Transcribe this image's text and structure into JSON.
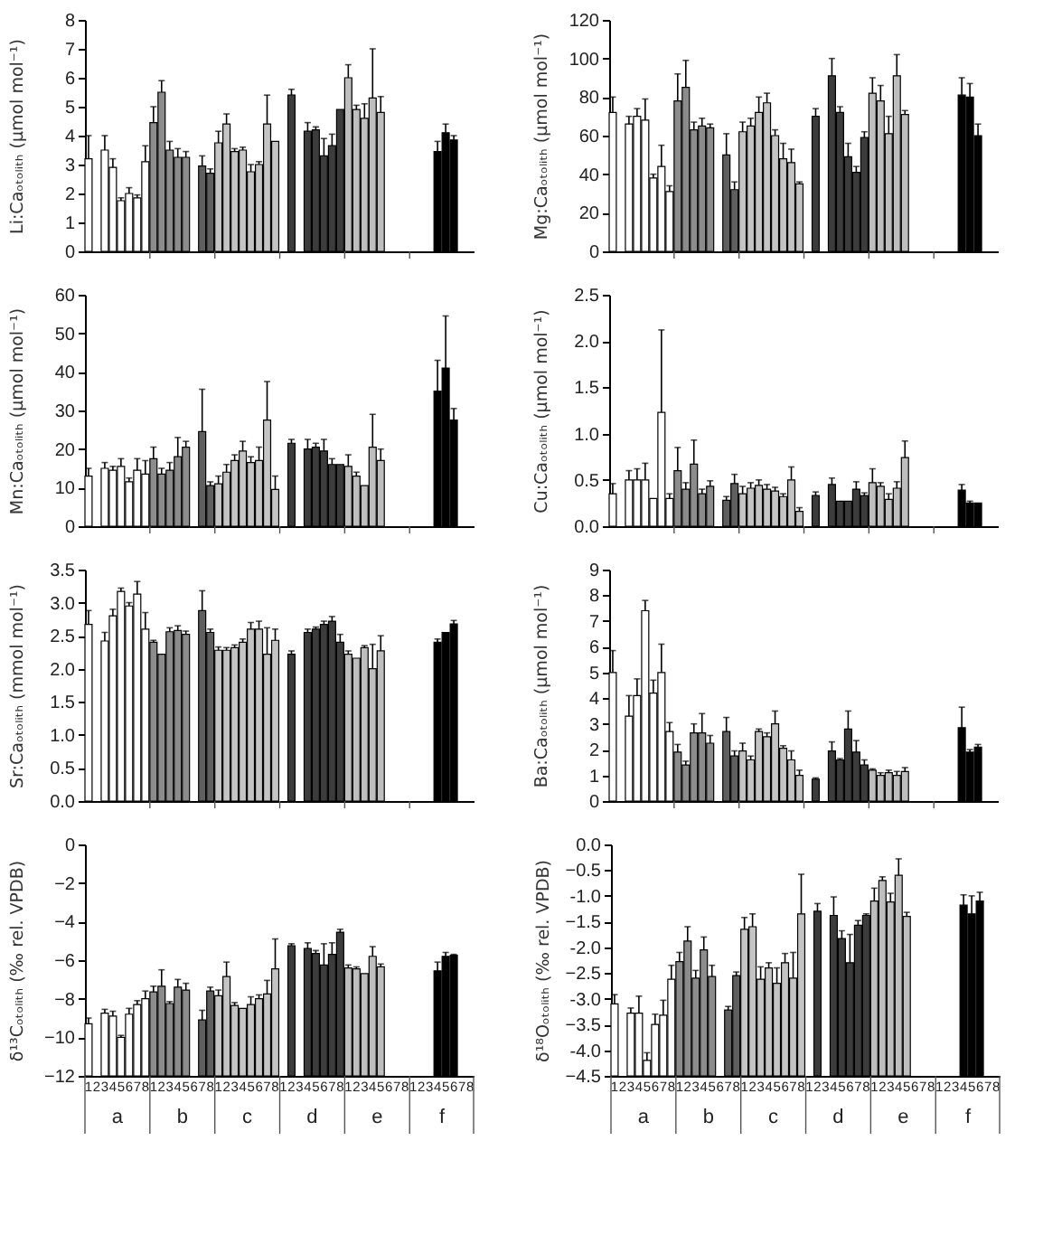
{
  "chart_data": [
    {
      "type": "bar",
      "ylabel": "Li:Caₒₜₒₗᵢₜₕ (µmol mol⁻¹)",
      "tick_labels": "y",
      "ylim": [
        0,
        8
      ],
      "yticks": [
        0,
        1,
        2,
        3,
        4,
        5,
        6,
        7,
        8
      ],
      "categories": [
        "1",
        "2",
        "3",
        "4",
        "5",
        "6",
        "7",
        "8",
        "1",
        "2",
        "3",
        "4",
        "5",
        "6",
        "7",
        "8",
        "1",
        "2",
        "3",
        "4",
        "5",
        "6",
        "7",
        "8",
        "1",
        "2",
        "3",
        "4",
        "5",
        "6",
        "7",
        "8",
        "1",
        "2",
        "3",
        "4",
        "5",
        "6",
        "7",
        "8",
        "1",
        "2",
        "3",
        "4",
        "5",
        "6",
        "7",
        "8"
      ],
      "colors": [
        "#ffffff",
        "#ffffff",
        "#ffffff",
        "#ffffff",
        "#ffffff",
        "#ffffff",
        "#ffffff",
        "#ffffff",
        "#8c8c8c",
        "#8c8c8c",
        "#8c8c8c",
        "#8c8c8c",
        "#8c8c8c",
        "#8c8c8c",
        "#5f5f5f",
        "#5f5f5f",
        "#c4c4c4",
        "#c4c4c4",
        "#c4c4c4",
        "#c4c4c4",
        "#c4c4c4",
        "#c4c4c4",
        "#c4c4c4",
        "#c4c4c4",
        "#3c3c3c",
        "#3c3c3c",
        "#3c3c3c",
        "#3c3c3c",
        "#3c3c3c",
        "#3c3c3c",
        "#3c3c3c",
        "#3c3c3c",
        "#bebebe",
        "#bebebe",
        "#bebebe",
        "#bebebe",
        "#bebebe",
        "#bebebe",
        "#bebebe",
        "#bebebe",
        "#000000",
        "#000000",
        "#000000",
        "#000000",
        "#000000",
        "#000000",
        "#000000",
        "#000000"
      ],
      "values": [
        3.2,
        null,
        3.5,
        2.9,
        1.75,
        2.0,
        1.85,
        3.1,
        4.45,
        5.5,
        3.5,
        3.25,
        3.25,
        null,
        2.95,
        2.7,
        3.75,
        4.4,
        3.45,
        3.5,
        2.75,
        3.0,
        4.4,
        3.8,
        null,
        5.4,
        null,
        4.15,
        4.2,
        3.3,
        3.65,
        4.9,
        6.0,
        4.9,
        4.6,
        5.3,
        4.8,
        null,
        null,
        null,
        null,
        null,
        null,
        3.45,
        4.1,
        3.85,
        null,
        null
      ],
      "errors": [
        [
          3.2,
          4.0
        ],
        null,
        [
          3.5,
          4.0
        ],
        [
          2.9,
          3.2
        ],
        [
          1.75,
          1.85
        ],
        [
          2.0,
          2.2
        ],
        [
          1.85,
          1.95
        ],
        [
          3.1,
          3.65
        ],
        [
          4.45,
          5.0
        ],
        [
          5.5,
          5.9
        ],
        [
          3.5,
          3.8
        ],
        [
          3.25,
          3.55
        ],
        [
          3.25,
          3.45
        ],
        null,
        [
          2.95,
          3.3
        ],
        [
          2.7,
          2.85
        ],
        [
          3.75,
          4.15
        ],
        [
          4.4,
          4.75
        ],
        [
          3.45,
          3.55
        ],
        [
          3.5,
          3.6
        ],
        [
          2.75,
          3.0
        ],
        [
          3.0,
          3.1
        ],
        [
          4.4,
          5.4
        ],
        null,
        null,
        [
          5.4,
          5.6
        ],
        null,
        [
          4.15,
          4.45
        ],
        [
          4.2,
          4.3
        ],
        [
          3.3,
          3.9
        ],
        [
          3.65,
          4.05
        ],
        null,
        [
          6.0,
          6.45
        ],
        [
          4.9,
          5.05
        ],
        [
          4.6,
          5.1
        ],
        [
          5.3,
          7.0
        ],
        [
          4.8,
          5.35
        ],
        null,
        null,
        null,
        null,
        null,
        null,
        [
          3.45,
          3.8
        ],
        [
          4.1,
          4.4
        ],
        [
          3.85,
          4.0
        ],
        null,
        null
      ]
    },
    {
      "type": "bar",
      "ylabel": "Mg:Caₒₜₒₗᵢₜₕ (µmol mol⁻¹)",
      "tick_labels": "y",
      "ylim": [
        0,
        120
      ],
      "yticks": [
        0,
        20,
        40,
        60,
        80,
        100,
        120
      ],
      "categories": [
        "1",
        "2",
        "3",
        "4",
        "5",
        "6",
        "7",
        "8",
        "1",
        "2",
        "3",
        "4",
        "5",
        "6",
        "7",
        "8",
        "1",
        "2",
        "3",
        "4",
        "5",
        "6",
        "7",
        "8",
        "1",
        "2",
        "3",
        "4",
        "5",
        "6",
        "7",
        "8",
        "1",
        "2",
        "3",
        "4",
        "5",
        "6",
        "7",
        "8",
        "1",
        "2",
        "3",
        "4",
        "5",
        "6",
        "7",
        "8"
      ],
      "colors": [
        "#ffffff",
        "#ffffff",
        "#ffffff",
        "#ffffff",
        "#ffffff",
        "#ffffff",
        "#ffffff",
        "#ffffff",
        "#8c8c8c",
        "#8c8c8c",
        "#8c8c8c",
        "#8c8c8c",
        "#8c8c8c",
        "#8c8c8c",
        "#5f5f5f",
        "#5f5f5f",
        "#c4c4c4",
        "#c4c4c4",
        "#c4c4c4",
        "#c4c4c4",
        "#c4c4c4",
        "#c4c4c4",
        "#c4c4c4",
        "#c4c4c4",
        "#3c3c3c",
        "#3c3c3c",
        "#3c3c3c",
        "#3c3c3c",
        "#3c3c3c",
        "#3c3c3c",
        "#3c3c3c",
        "#3c3c3c",
        "#bebebe",
        "#bebebe",
        "#bebebe",
        "#bebebe",
        "#bebebe",
        "#bebebe",
        "#bebebe",
        "#bebebe",
        "#000000",
        "#000000",
        "#000000",
        "#000000",
        "#000000",
        "#000000",
        "#000000",
        "#000000"
      ],
      "values": [
        72,
        null,
        66,
        70,
        68,
        38,
        44,
        31,
        78,
        85,
        63,
        65,
        64,
        null,
        50,
        32,
        62,
        65,
        72,
        77,
        60,
        48,
        46,
        35,
        null,
        70,
        null,
        91,
        72,
        49,
        41,
        59,
        82,
        78,
        61,
        91,
        71,
        null,
        null,
        null,
        null,
        null,
        null,
        81,
        80,
        60,
        null,
        null
      ],
      "errors": [
        [
          72,
          80
        ],
        null,
        [
          66,
          70
        ],
        [
          70,
          74
        ],
        [
          68,
          79
        ],
        [
          38,
          40
        ],
        [
          44,
          55
        ],
        [
          31,
          34
        ],
        [
          78,
          92
        ],
        [
          85,
          99
        ],
        [
          63,
          67
        ],
        [
          65,
          69
        ],
        [
          64,
          66
        ],
        null,
        [
          50,
          61
        ],
        [
          32,
          36
        ],
        [
          62,
          67
        ],
        [
          65,
          69
        ],
        [
          72,
          80
        ],
        [
          77,
          82
        ],
        [
          60,
          63
        ],
        [
          48,
          56
        ],
        [
          46,
          53
        ],
        [
          35,
          36
        ],
        null,
        [
          70,
          74
        ],
        null,
        [
          91,
          100
        ],
        [
          72,
          75
        ],
        [
          49,
          56
        ],
        [
          41,
          44
        ],
        [
          59,
          62
        ],
        [
          82,
          90
        ],
        [
          78,
          86
        ],
        [
          61,
          70
        ],
        [
          91,
          102
        ],
        [
          71,
          73
        ],
        null,
        null,
        null,
        null,
        null,
        null,
        [
          81,
          90
        ],
        [
          80,
          87
        ],
        [
          60,
          66
        ],
        null,
        null
      ]
    },
    {
      "type": "bar",
      "ylabel": "Mn:Caₒₜₒₗᵢₜₕ (µmol mol⁻¹)",
      "tick_labels": "y",
      "ylim": [
        0,
        60
      ],
      "yticks": [
        0,
        10,
        20,
        30,
        40,
        50,
        60
      ],
      "categories": [
        "1",
        "2",
        "3",
        "4",
        "5",
        "6",
        "7",
        "8",
        "1",
        "2",
        "3",
        "4",
        "5",
        "6",
        "7",
        "8",
        "1",
        "2",
        "3",
        "4",
        "5",
        "6",
        "7",
        "8",
        "1",
        "2",
        "3",
        "4",
        "5",
        "6",
        "7",
        "8",
        "1",
        "2",
        "3",
        "4",
        "5",
        "6",
        "7",
        "8",
        "1",
        "2",
        "3",
        "4",
        "5",
        "6",
        "7",
        "8"
      ],
      "colors": [
        "#ffffff",
        "#ffffff",
        "#ffffff",
        "#ffffff",
        "#ffffff",
        "#ffffff",
        "#ffffff",
        "#ffffff",
        "#8c8c8c",
        "#8c8c8c",
        "#8c8c8c",
        "#8c8c8c",
        "#8c8c8c",
        "#8c8c8c",
        "#5f5f5f",
        "#5f5f5f",
        "#c4c4c4",
        "#c4c4c4",
        "#c4c4c4",
        "#c4c4c4",
        "#c4c4c4",
        "#c4c4c4",
        "#c4c4c4",
        "#c4c4c4",
        "#3c3c3c",
        "#3c3c3c",
        "#3c3c3c",
        "#3c3c3c",
        "#3c3c3c",
        "#3c3c3c",
        "#3c3c3c",
        "#3c3c3c",
        "#bebebe",
        "#bebebe",
        "#bebebe",
        "#bebebe",
        "#bebebe",
        "#bebebe",
        "#bebebe",
        "#bebebe",
        "#000000",
        "#000000",
        "#000000",
        "#000000",
        "#000000",
        "#000000",
        "#000000",
        "#000000"
      ],
      "values": [
        13,
        null,
        15,
        14.5,
        15.5,
        11.5,
        14.5,
        13.5,
        17.5,
        13.5,
        14.5,
        18,
        20.5,
        null,
        24.5,
        10.5,
        11,
        14,
        17,
        19.5,
        16.5,
        17,
        27.5,
        9.5,
        null,
        21.5,
        null,
        20,
        20.5,
        19.5,
        16,
        16,
        15.5,
        13,
        10.5,
        20.5,
        17,
        null,
        null,
        null,
        null,
        null,
        null,
        35,
        41,
        27.5,
        null,
        null
      ],
      "errors": [
        [
          13,
          15
        ],
        null,
        [
          15,
          16.5
        ],
        [
          14.5,
          15.5
        ],
        [
          15.5,
          17.5
        ],
        [
          11.5,
          12.5
        ],
        [
          14.5,
          17.5
        ],
        [
          13.5,
          17
        ],
        [
          17.5,
          20.5
        ],
        [
          13.5,
          15
        ],
        [
          14.5,
          16.5
        ],
        [
          18,
          23
        ],
        [
          20.5,
          22
        ],
        null,
        [
          24.5,
          35.5
        ],
        [
          10.5,
          11.5
        ],
        [
          11,
          13
        ],
        [
          14,
          16
        ],
        [
          17,
          18.5
        ],
        [
          19.5,
          22
        ],
        [
          16.5,
          18
        ],
        [
          17,
          20.5
        ],
        [
          27.5,
          37.5
        ],
        [
          9.5,
          13
        ],
        null,
        [
          21.5,
          22.5
        ],
        null,
        [
          20,
          22.5
        ],
        [
          20.5,
          21.5
        ],
        [
          19.5,
          22.5
        ],
        [
          16,
          17.5
        ],
        null,
        [
          15.5,
          18.5
        ],
        [
          13,
          14
        ],
        null,
        [
          20.5,
          29
        ],
        [
          17,
          20
        ],
        null,
        null,
        null,
        null,
        null,
        null,
        [
          35,
          43
        ],
        [
          41,
          54.5
        ],
        [
          27.5,
          30.5
        ],
        null,
        null
      ]
    },
    {
      "type": "bar",
      "ylabel": "Cu:Caₒₜₒₗᵢₜₕ (µmol mol⁻¹)",
      "tick_labels": "y",
      "ylim": [
        0,
        2.5
      ],
      "yticks": [
        {
          "value": 0,
          "label": "0.0"
        },
        0.5,
        {
          "value": 1,
          "label": "1.0"
        },
        1.5,
        {
          "value": 2,
          "label": "2.0"
        },
        2.5
      ],
      "categories": [
        "1",
        "2",
        "3",
        "4",
        "5",
        "6",
        "7",
        "8",
        "1",
        "2",
        "3",
        "4",
        "5",
        "6",
        "7",
        "8",
        "1",
        "2",
        "3",
        "4",
        "5",
        "6",
        "7",
        "8",
        "1",
        "2",
        "3",
        "4",
        "5",
        "6",
        "7",
        "8",
        "1",
        "2",
        "3",
        "4",
        "5",
        "6",
        "7",
        "8",
        "1",
        "2",
        "3",
        "4",
        "5",
        "6",
        "7",
        "8"
      ],
      "colors": [
        "#ffffff",
        "#ffffff",
        "#ffffff",
        "#ffffff",
        "#ffffff",
        "#ffffff",
        "#ffffff",
        "#ffffff",
        "#8c8c8c",
        "#8c8c8c",
        "#8c8c8c",
        "#8c8c8c",
        "#8c8c8c",
        "#8c8c8c",
        "#5f5f5f",
        "#5f5f5f",
        "#c4c4c4",
        "#c4c4c4",
        "#c4c4c4",
        "#c4c4c4",
        "#c4c4c4",
        "#c4c4c4",
        "#c4c4c4",
        "#c4c4c4",
        "#3c3c3c",
        "#3c3c3c",
        "#3c3c3c",
        "#3c3c3c",
        "#3c3c3c",
        "#3c3c3c",
        "#3c3c3c",
        "#3c3c3c",
        "#bebebe",
        "#bebebe",
        "#bebebe",
        "#bebebe",
        "#bebebe",
        "#bebebe",
        "#bebebe",
        "#bebebe",
        "#000000",
        "#000000",
        "#000000",
        "#000000",
        "#000000",
        "#000000",
        "#000000",
        "#000000"
      ],
      "values": [
        0.35,
        null,
        0.5,
        0.5,
        0.5,
        0.3,
        1.23,
        0.3,
        0.6,
        0.4,
        0.67,
        0.35,
        0.43,
        null,
        0.28,
        0.46,
        0.35,
        0.41,
        0.44,
        0.4,
        0.38,
        0.32,
        0.5,
        0.16,
        null,
        0.33,
        null,
        0.45,
        0.27,
        0.27,
        0.4,
        0.33,
        0.47,
        0.43,
        0.29,
        0.41,
        0.74,
        null,
        null,
        null,
        null,
        null,
        null,
        0.39,
        0.25,
        0.25,
        null,
        null
      ],
      "errors": [
        [
          0.35,
          0.46
        ],
        null,
        [
          0.5,
          0.6
        ],
        [
          0.5,
          0.62
        ],
        [
          0.5,
          0.68
        ],
        null,
        [
          1.23,
          2.12
        ],
        [
          0.3,
          0.35
        ],
        [
          0.6,
          0.85
        ],
        [
          0.4,
          0.47
        ],
        [
          0.67,
          0.93
        ],
        [
          0.35,
          0.4
        ],
        [
          0.43,
          0.49
        ],
        null,
        [
          0.28,
          0.32
        ],
        [
          0.46,
          0.56
        ],
        [
          0.35,
          0.43
        ],
        [
          0.41,
          0.47
        ],
        [
          0.44,
          0.5
        ],
        [
          0.4,
          0.45
        ],
        [
          0.38,
          0.42
        ],
        [
          0.32,
          0.35
        ],
        [
          0.5,
          0.64
        ],
        [
          0.16,
          0.2
        ],
        null,
        [
          0.33,
          0.37
        ],
        null,
        [
          0.45,
          0.52
        ],
        null,
        null,
        [
          0.4,
          0.48
        ],
        [
          0.33,
          0.36
        ],
        [
          0.47,
          0.62
        ],
        [
          0.43,
          0.47
        ],
        [
          0.29,
          0.35
        ],
        [
          0.41,
          0.48
        ],
        [
          0.74,
          0.92
        ],
        null,
        null,
        null,
        null,
        null,
        null,
        [
          0.39,
          0.45
        ],
        [
          0.25,
          0.27
        ],
        null,
        null,
        null
      ]
    },
    {
      "type": "bar",
      "ylabel": "Sr:Caₒₜₒₗᵢₜₕ (mmol mol⁻¹)",
      "tick_labels": "y",
      "ylim": [
        0,
        3.5
      ],
      "yticks": [
        {
          "value": 0,
          "label": "0.0"
        },
        0.5,
        {
          "value": 1,
          "label": "1.0"
        },
        1.5,
        {
          "value": 2,
          "label": "2.0"
        },
        2.5,
        {
          "value": 3,
          "label": "3.0"
        },
        3.5
      ],
      "categories": [
        "1",
        "2",
        "3",
        "4",
        "5",
        "6",
        "7",
        "8",
        "1",
        "2",
        "3",
        "4",
        "5",
        "6",
        "7",
        "8",
        "1",
        "2",
        "3",
        "4",
        "5",
        "6",
        "7",
        "8",
        "1",
        "2",
        "3",
        "4",
        "5",
        "6",
        "7",
        "8",
        "1",
        "2",
        "3",
        "4",
        "5",
        "6",
        "7",
        "8",
        "1",
        "2",
        "3",
        "4",
        "5",
        "6",
        "7",
        "8"
      ],
      "colors": [
        "#ffffff",
        "#ffffff",
        "#ffffff",
        "#ffffff",
        "#ffffff",
        "#ffffff",
        "#ffffff",
        "#ffffff",
        "#8c8c8c",
        "#8c8c8c",
        "#8c8c8c",
        "#8c8c8c",
        "#8c8c8c",
        "#8c8c8c",
        "#5f5f5f",
        "#5f5f5f",
        "#c4c4c4",
        "#c4c4c4",
        "#c4c4c4",
        "#c4c4c4",
        "#c4c4c4",
        "#c4c4c4",
        "#c4c4c4",
        "#c4c4c4",
        "#3c3c3c",
        "#3c3c3c",
        "#3c3c3c",
        "#3c3c3c",
        "#3c3c3c",
        "#3c3c3c",
        "#3c3c3c",
        "#3c3c3c",
        "#bebebe",
        "#bebebe",
        "#bebebe",
        "#bebebe",
        "#bebebe",
        "#bebebe",
        "#bebebe",
        "#bebebe",
        "#000000",
        "#000000",
        "#000000",
        "#000000",
        "#000000",
        "#000000",
        "#000000",
        "#000000"
      ],
      "values": [
        2.67,
        null,
        2.42,
        2.8,
        3.17,
        2.95,
        3.13,
        2.6,
        2.4,
        2.22,
        2.56,
        2.58,
        2.52,
        null,
        2.88,
        2.55,
        2.28,
        2.28,
        2.32,
        2.4,
        2.6,
        2.6,
        2.22,
        2.43,
        null,
        2.22,
        null,
        2.55,
        2.6,
        2.67,
        2.72,
        2.4,
        2.22,
        2.16,
        2.32,
        2.0,
        2.27,
        null,
        null,
        null,
        null,
        null,
        null,
        2.4,
        2.55,
        2.68,
        null,
        null
      ],
      "errors": [
        [
          2.67,
          2.88
        ],
        null,
        [
          2.42,
          2.55
        ],
        [
          2.8,
          2.9
        ],
        [
          3.17,
          3.22
        ],
        [
          2.95,
          3.0
        ],
        [
          3.13,
          3.32
        ],
        [
          2.6,
          2.85
        ],
        [
          2.4,
          2.43
        ],
        null,
        [
          2.56,
          2.62
        ],
        [
          2.58,
          2.65
        ],
        [
          2.52,
          2.57
        ],
        null,
        [
          2.88,
          3.18
        ],
        [
          2.55,
          2.6
        ],
        [
          2.28,
          2.33
        ],
        [
          2.28,
          2.32
        ],
        [
          2.32,
          2.36
        ],
        [
          2.4,
          2.45
        ],
        [
          2.6,
          2.7
        ],
        [
          2.6,
          2.72
        ],
        [
          2.22,
          2.62
        ],
        [
          2.43,
          2.6
        ],
        null,
        [
          2.22,
          2.27
        ],
        null,
        [
          2.55,
          2.6
        ],
        [
          2.6,
          2.63
        ],
        [
          2.67,
          2.72
        ],
        [
          2.72,
          2.79
        ],
        [
          2.4,
          2.52
        ],
        [
          2.22,
          2.27
        ],
        null,
        [
          2.32,
          2.35
        ],
        [
          2.0,
          2.37
        ],
        [
          2.27,
          2.5
        ],
        null,
        null,
        null,
        null,
        null,
        null,
        [
          2.4,
          2.45
        ],
        null,
        [
          2.68,
          2.73
        ],
        null,
        null
      ]
    },
    {
      "type": "bar",
      "ylabel": "Ba:Caₒₜₒₗᵢₜₕ (µmol mol⁻¹)",
      "tick_labels": "y",
      "ylim": [
        0,
        9
      ],
      "yticks": [
        0,
        1,
        2,
        3,
        4,
        5,
        6,
        7,
        8,
        9
      ],
      "categories": [
        "1",
        "2",
        "3",
        "4",
        "5",
        "6",
        "7",
        "8",
        "1",
        "2",
        "3",
        "4",
        "5",
        "6",
        "7",
        "8",
        "1",
        "2",
        "3",
        "4",
        "5",
        "6",
        "7",
        "8",
        "1",
        "2",
        "3",
        "4",
        "5",
        "6",
        "7",
        "8",
        "1",
        "2",
        "3",
        "4",
        "5",
        "6",
        "7",
        "8",
        "1",
        "2",
        "3",
        "4",
        "5",
        "6",
        "7",
        "8"
      ],
      "colors": [
        "#ffffff",
        "#ffffff",
        "#ffffff",
        "#ffffff",
        "#ffffff",
        "#ffffff",
        "#ffffff",
        "#ffffff",
        "#8c8c8c",
        "#8c8c8c",
        "#8c8c8c",
        "#8c8c8c",
        "#8c8c8c",
        "#8c8c8c",
        "#5f5f5f",
        "#5f5f5f",
        "#c4c4c4",
        "#c4c4c4",
        "#c4c4c4",
        "#c4c4c4",
        "#c4c4c4",
        "#c4c4c4",
        "#c4c4c4",
        "#c4c4c4",
        "#3c3c3c",
        "#3c3c3c",
        "#3c3c3c",
        "#3c3c3c",
        "#3c3c3c",
        "#3c3c3c",
        "#3c3c3c",
        "#3c3c3c",
        "#bebebe",
        "#bebebe",
        "#bebebe",
        "#bebebe",
        "#bebebe",
        "#bebebe",
        "#bebebe",
        "#bebebe",
        "#000000",
        "#000000",
        "#000000",
        "#000000",
        "#000000",
        "#000000",
        "#000000",
        "#000000"
      ],
      "values": [
        5.0,
        null,
        3.3,
        4.1,
        7.4,
        4.2,
        5.0,
        2.7,
        1.9,
        1.4,
        2.65,
        2.65,
        2.25,
        null,
        2.7,
        1.75,
        1.95,
        1.6,
        2.7,
        2.5,
        3.0,
        2.05,
        1.6,
        1.0,
        null,
        0.85,
        null,
        1.95,
        1.6,
        2.8,
        1.9,
        1.4,
        1.2,
        1.0,
        1.1,
        1.0,
        1.15,
        null,
        null,
        null,
        null,
        null,
        null,
        2.85,
        1.9,
        2.1,
        null,
        null
      ],
      "errors": [
        [
          5.0,
          5.85
        ],
        null,
        [
          3.3,
          4.1
        ],
        [
          4.1,
          4.75
        ],
        [
          7.4,
          7.8
        ],
        [
          4.2,
          4.7
        ],
        [
          5.0,
          6.1
        ],
        [
          2.7,
          3.05
        ],
        [
          1.9,
          2.2
        ],
        [
          1.4,
          1.55
        ],
        [
          2.65,
          3.0
        ],
        [
          2.65,
          3.4
        ],
        [
          2.25,
          2.55
        ],
        null,
        [
          2.7,
          3.25
        ],
        [
          1.75,
          1.95
        ],
        [
          1.95,
          2.25
        ],
        [
          1.6,
          1.75
        ],
        [
          2.7,
          2.8
        ],
        [
          2.5,
          2.65
        ],
        [
          3.0,
          3.5
        ],
        [
          2.05,
          2.15
        ],
        [
          1.6,
          1.95
        ],
        [
          1.0,
          1.2
        ],
        null,
        [
          0.85,
          0.9
        ],
        null,
        [
          1.95,
          2.3
        ],
        [
          1.6,
          1.65
        ],
        [
          2.8,
          3.5
        ],
        [
          1.9,
          2.35
        ],
        [
          1.4,
          1.6
        ],
        [
          1.2,
          1.25
        ],
        [
          1.0,
          1.1
        ],
        [
          1.1,
          1.2
        ],
        [
          1.0,
          1.15
        ],
        [
          1.15,
          1.3
        ],
        null,
        null,
        null,
        null,
        null,
        null,
        [
          2.85,
          3.65
        ],
        [
          1.9,
          2.0
        ],
        [
          2.1,
          2.2
        ],
        null,
        null
      ]
    },
    {
      "type": "bar",
      "ylabel": "δ¹³Cₒₜₒₗᵢₜₕ (‰ rel. VPDB)",
      "ylim": [
        -12,
        0
      ],
      "yticks": [
        -12,
        -10,
        -8,
        -6,
        -4,
        -2,
        0
      ],
      "annotations": [
        "a",
        "b",
        "c",
        "d",
        "e",
        "f"
      ],
      "categories": [
        "1",
        "2",
        "3",
        "4",
        "5",
        "6",
        "7",
        "8",
        "1",
        "2",
        "3",
        "4",
        "5",
        "6",
        "7",
        "8",
        "1",
        "2",
        "3",
        "4",
        "5",
        "6",
        "7",
        "8",
        "1",
        "2",
        "3",
        "4",
        "5",
        "6",
        "7",
        "8",
        "1",
        "2",
        "3",
        "4",
        "5",
        "6",
        "7",
        "8",
        "1",
        "2",
        "3",
        "4",
        "5",
        "6",
        "7",
        "8"
      ],
      "colors": [
        "#ffffff",
        "#ffffff",
        "#ffffff",
        "#ffffff",
        "#ffffff",
        "#ffffff",
        "#ffffff",
        "#ffffff",
        "#8c8c8c",
        "#8c8c8c",
        "#8c8c8c",
        "#8c8c8c",
        "#8c8c8c",
        "#8c8c8c",
        "#5f5f5f",
        "#5f5f5f",
        "#c4c4c4",
        "#c4c4c4",
        "#c4c4c4",
        "#c4c4c4",
        "#c4c4c4",
        "#c4c4c4",
        "#c4c4c4",
        "#c4c4c4",
        "#3c3c3c",
        "#3c3c3c",
        "#3c3c3c",
        "#3c3c3c",
        "#3c3c3c",
        "#3c3c3c",
        "#3c3c3c",
        "#3c3c3c",
        "#bebebe",
        "#bebebe",
        "#bebebe",
        "#bebebe",
        "#bebebe",
        "#bebebe",
        "#bebebe",
        "#bebebe",
        "#000000",
        "#000000",
        "#000000",
        "#000000",
        "#000000",
        "#000000",
        "#000000",
        "#000000"
      ],
      "base": [
        -12,
        null,
        -12,
        -12,
        -12,
        -12,
        -12,
        -12,
        -12,
        -12,
        -12,
        -12,
        -12,
        null,
        -12,
        -12,
        -12,
        -12,
        -12,
        -12,
        -12,
        -12,
        -12,
        -12,
        null,
        -12,
        null,
        -12,
        -12,
        -12,
        -12,
        -12,
        -12,
        -12,
        -12,
        -12,
        -12,
        null,
        null,
        null,
        null,
        null,
        null,
        -12,
        -12,
        -12,
        null,
        null
      ],
      "values": [
        2.7,
        null,
        3.25,
        3.1,
        2.0,
        3.2,
        3.7,
        4.0,
        4.35,
        4.65,
        3.75,
        4.6,
        4.45,
        null,
        2.9,
        4.4,
        4.15,
        5.15,
        3.65,
        3.5,
        3.7,
        4.0,
        4.25,
        5.55,
        null,
        6.75,
        null,
        6.6,
        6.35,
        5.75,
        6.3,
        7.45,
        5.6,
        5.55,
        5.3,
        6.2,
        5.65,
        null,
        null,
        null,
        null,
        null,
        null,
        5.45,
        6.2,
        6.25,
        null,
        null
      ],
      "errors": [
        [
          -9.3,
          -9.0
        ],
        null,
        [
          -8.75,
          -8.55
        ],
        [
          -8.9,
          -8.65
        ],
        [
          -10.0,
          -9.9
        ],
        [
          -8.8,
          -8.5
        ],
        [
          -8.3,
          -8.1
        ],
        [
          -8.0,
          -7.6
        ],
        [
          -7.65,
          -7.35
        ],
        [
          -7.35,
          -6.5
        ],
        [
          -8.25,
          -8.15
        ],
        [
          -7.4,
          -7.0
        ],
        [
          -7.55,
          -7.2
        ],
        null,
        [
          -9.1,
          -8.6
        ],
        [
          -7.6,
          -7.4
        ],
        [
          -7.85,
          -7.55
        ],
        [
          -6.85,
          -6.1
        ],
        [
          -8.35,
          -8.2
        ],
        null,
        [
          -8.3,
          -7.9
        ],
        [
          -8.0,
          -7.8
        ],
        [
          -7.75,
          -7.05
        ],
        [
          -6.45,
          -4.9
        ],
        null,
        [
          -5.25,
          -5.15
        ],
        null,
        [
          -5.4,
          -5.1
        ],
        [
          -5.65,
          -5.5
        ],
        [
          -6.25,
          -5.15
        ],
        [
          -5.7,
          -5.1
        ],
        [
          -4.55,
          -4.4
        ],
        [
          -6.4,
          -6.25
        ],
        [
          -6.45,
          -6.35
        ],
        null,
        [
          -5.8,
          -5.3
        ],
        [
          -6.35,
          -6.2
        ],
        null,
        null,
        null,
        null,
        null,
        null,
        [
          -6.55,
          -6.1
        ],
        [
          -5.8,
          -5.6
        ],
        [
          -5.75,
          -5.7
        ],
        null,
        null
      ]
    },
    {
      "type": "bar",
      "ylabel": "δ¹⁸Oₒₜₒₗᵢₜₕ (‰ rel. VPDB)",
      "ylim": [
        -4.5,
        0
      ],
      "yticks": [
        -4.5,
        {
          "value": -4,
          "label": "-4.0"
        },
        -3.5,
        {
          "value": -3,
          "label": "-3.0"
        },
        -2.5,
        {
          "value": -2,
          "label": "-2.0"
        },
        -1.5,
        {
          "value": -1,
          "label": "-1.0"
        },
        -0.5,
        {
          "value": 0,
          "label": "0.0"
        }
      ],
      "annotations": [
        "a",
        "b",
        "c",
        "d",
        "e",
        "f"
      ],
      "categories": [
        "1",
        "2",
        "3",
        "4",
        "5",
        "6",
        "7",
        "8",
        "1",
        "2",
        "3",
        "4",
        "5",
        "6",
        "7",
        "8",
        "1",
        "2",
        "3",
        "4",
        "5",
        "6",
        "7",
        "8",
        "1",
        "2",
        "3",
        "4",
        "5",
        "6",
        "7",
        "8",
        "1",
        "2",
        "3",
        "4",
        "5",
        "6",
        "7",
        "8",
        "1",
        "2",
        "3",
        "4",
        "5",
        "6",
        "7",
        "8"
      ],
      "colors": [
        "#ffffff",
        "#ffffff",
        "#ffffff",
        "#ffffff",
        "#ffffff",
        "#ffffff",
        "#ffffff",
        "#ffffff",
        "#8c8c8c",
        "#8c8c8c",
        "#8c8c8c",
        "#8c8c8c",
        "#8c8c8c",
        "#8c8c8c",
        "#5f5f5f",
        "#5f5f5f",
        "#c4c4c4",
        "#c4c4c4",
        "#c4c4c4",
        "#c4c4c4",
        "#c4c4c4",
        "#c4c4c4",
        "#c4c4c4",
        "#c4c4c4",
        "#3c3c3c",
        "#3c3c3c",
        "#3c3c3c",
        "#3c3c3c",
        "#3c3c3c",
        "#3c3c3c",
        "#3c3c3c",
        "#3c3c3c",
        "#bebebe",
        "#bebebe",
        "#bebebe",
        "#bebebe",
        "#bebebe",
        "#bebebe",
        "#bebebe",
        "#bebebe",
        "#000000",
        "#000000",
        "#000000",
        "#000000",
        "#000000",
        "#000000",
        "#000000",
        "#000000"
      ],
      "base": [
        -4.5,
        null,
        -4.5,
        -4.5,
        -4.5,
        -4.5,
        -4.5,
        -4.5,
        -4.5,
        -4.5,
        -4.5,
        -4.5,
        -4.5,
        null,
        -4.5,
        -4.5,
        -4.5,
        -4.5,
        -4.5,
        -4.5,
        -4.5,
        -4.5,
        -4.5,
        -4.5,
        null,
        -4.5,
        null,
        -4.5,
        -4.5,
        -4.5,
        -4.5,
        -4.5,
        -4.5,
        -4.5,
        -4.5,
        -4.5,
        -4.5,
        null,
        null,
        null,
        null,
        null,
        null,
        -4.5,
        -4.5,
        -4.5,
        null,
        null
      ],
      "values": [
        1.4,
        null,
        1.22,
        1.22,
        0.3,
        1.0,
        1.18,
        1.88,
        2.22,
        2.62,
        1.9,
        2.45,
        1.93,
        null,
        1.28,
        1.95,
        2.85,
        2.9,
        1.88,
        2.1,
        1.8,
        2.2,
        1.9,
        3.15,
        null,
        3.2,
        null,
        3.12,
        2.67,
        2.2,
        2.93,
        3.12,
        3.4,
        3.8,
        3.38,
        3.9,
        3.1,
        null,
        null,
        null,
        null,
        null,
        null,
        3.32,
        3.15,
        3.4,
        null,
        null
      ],
      "errors": [
        [
          -3.1,
          -2.92
        ],
        null,
        [
          -3.28,
          -3.18
        ],
        [
          -3.28,
          -2.95
        ],
        [
          -4.2,
          -4.05
        ],
        [
          -3.5,
          -3.3
        ],
        [
          -3.32,
          -3.03
        ],
        [
          -2.62,
          -2.35
        ],
        [
          -2.28,
          -2.1
        ],
        [
          -1.88,
          -1.6
        ],
        [
          -2.6,
          -2.45
        ],
        [
          -2.05,
          -1.8
        ],
        [
          -2.57,
          -2.35
        ],
        null,
        [
          -3.22,
          -3.15
        ],
        [
          -2.55,
          -2.48
        ],
        [
          -1.65,
          -1.42
        ],
        [
          -1.6,
          -1.35
        ],
        [
          -2.62,
          -2.38
        ],
        [
          -2.4,
          -2.3
        ],
        [
          -2.7,
          -2.4
        ],
        [
          -2.3,
          -2.12
        ],
        [
          -2.6,
          -2.1
        ],
        [
          -1.35,
          -0.58
        ],
        null,
        [
          -1.3,
          -1.15
        ],
        null,
        [
          -1.38,
          -1.02
        ],
        [
          -1.83,
          -1.68
        ],
        [
          -2.3,
          -1.75
        ],
        [
          -1.57,
          -1.48
        ],
        [
          -1.38,
          -1.35
        ],
        [
          -1.1,
          -0.85
        ],
        [
          -0.7,
          -0.63
        ],
        [
          -1.12,
          -0.95
        ],
        [
          -0.6,
          -0.28
        ],
        [
          -1.4,
          -1.32
        ],
        null,
        null,
        null,
        null,
        null,
        null,
        [
          -1.18,
          -0.98
        ],
        [
          -1.35,
          -1.0
        ],
        [
          -1.1,
          -0.93
        ],
        null,
        null
      ]
    }
  ]
}
